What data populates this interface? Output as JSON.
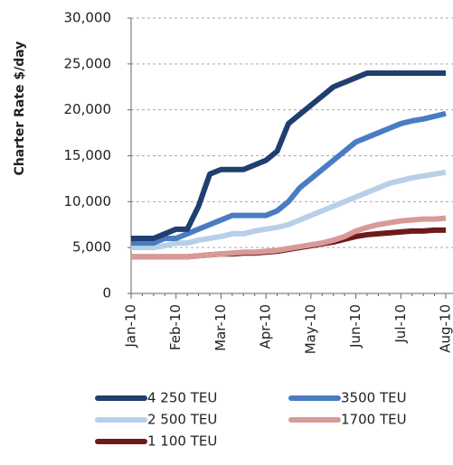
{
  "chart_data": {
    "type": "line",
    "y_label": "Charter Rate $/day",
    "categories": [
      "Jan-10",
      null,
      null,
      null,
      "Feb-10",
      null,
      null,
      null,
      "Mar-10",
      null,
      null,
      null,
      "Apr-10",
      null,
      null,
      null,
      "May-10",
      null,
      null,
      null,
      "Jun-10",
      null,
      null,
      null,
      "Jul-10",
      null,
      null,
      null,
      "Aug-10"
    ],
    "series": [
      {
        "name": "4 250 TEU",
        "color": "#1f3f6e",
        "values": [
          6000,
          6000,
          6000,
          6500,
          7000,
          7000,
          9500,
          13000,
          13500,
          13500,
          13500,
          14000,
          14500,
          15500,
          18500,
          19500,
          20500,
          21500,
          22500,
          23000,
          23500,
          24000,
          24000,
          24000,
          24000,
          24000,
          24000,
          24000,
          24000
        ]
      },
      {
        "name": "3500 TEU",
        "color": "#4a7cc4",
        "values": [
          5500,
          5500,
          5500,
          6000,
          6000,
          6500,
          7000,
          7500,
          8000,
          8500,
          8500,
          8500,
          8500,
          9000,
          10000,
          11500,
          12500,
          13500,
          14500,
          15500,
          16500,
          17000,
          17500,
          18000,
          18500,
          18800,
          19000,
          19300,
          19600
        ]
      },
      {
        "name": "2 500 TEU",
        "color": "#b8cfe8",
        "values": [
          5000,
          5000,
          5000,
          5200,
          5500,
          5500,
          5800,
          6000,
          6200,
          6500,
          6500,
          6800,
          7000,
          7200,
          7500,
          8000,
          8500,
          9000,
          9500,
          10000,
          10500,
          11000,
          11500,
          12000,
          12300,
          12600,
          12800,
          13000,
          13200
        ]
      },
      {
        "name": "1700 TEU",
        "color": "#d99a97",
        "values": [
          4000,
          4000,
          4000,
          4000,
          4000,
          4000,
          4100,
          4200,
          4300,
          4400,
          4500,
          4500,
          4600,
          4700,
          4900,
          5100,
          5300,
          5500,
          5800,
          6200,
          6800,
          7200,
          7500,
          7700,
          7900,
          8000,
          8100,
          8100,
          8200
        ]
      },
      {
        "name": "1 100 TEU",
        "color": "#6e1a1a",
        "values": [
          4000,
          4000,
          4000,
          4000,
          4000,
          4000,
          4100,
          4200,
          4300,
          4300,
          4400,
          4400,
          4500,
          4600,
          4800,
          5000,
          5200,
          5400,
          5600,
          5900,
          6200,
          6400,
          6500,
          6600,
          6700,
          6800,
          6800,
          6900,
          6900
        ]
      }
    ],
    "ylim": [
      0,
      30000
    ],
    "yticks": [
      0,
      {
        "value": 5000,
        "label": "5,000"
      },
      {
        "value": 10000,
        "label": "10,000"
      },
      {
        "value": 15000,
        "label": "15,000"
      },
      {
        "value": 20000,
        "label": "20,000"
      },
      {
        "value": 25000,
        "label": "25,000"
      },
      {
        "value": 30000,
        "label": "30,000"
      }
    ],
    "grid": true
  }
}
